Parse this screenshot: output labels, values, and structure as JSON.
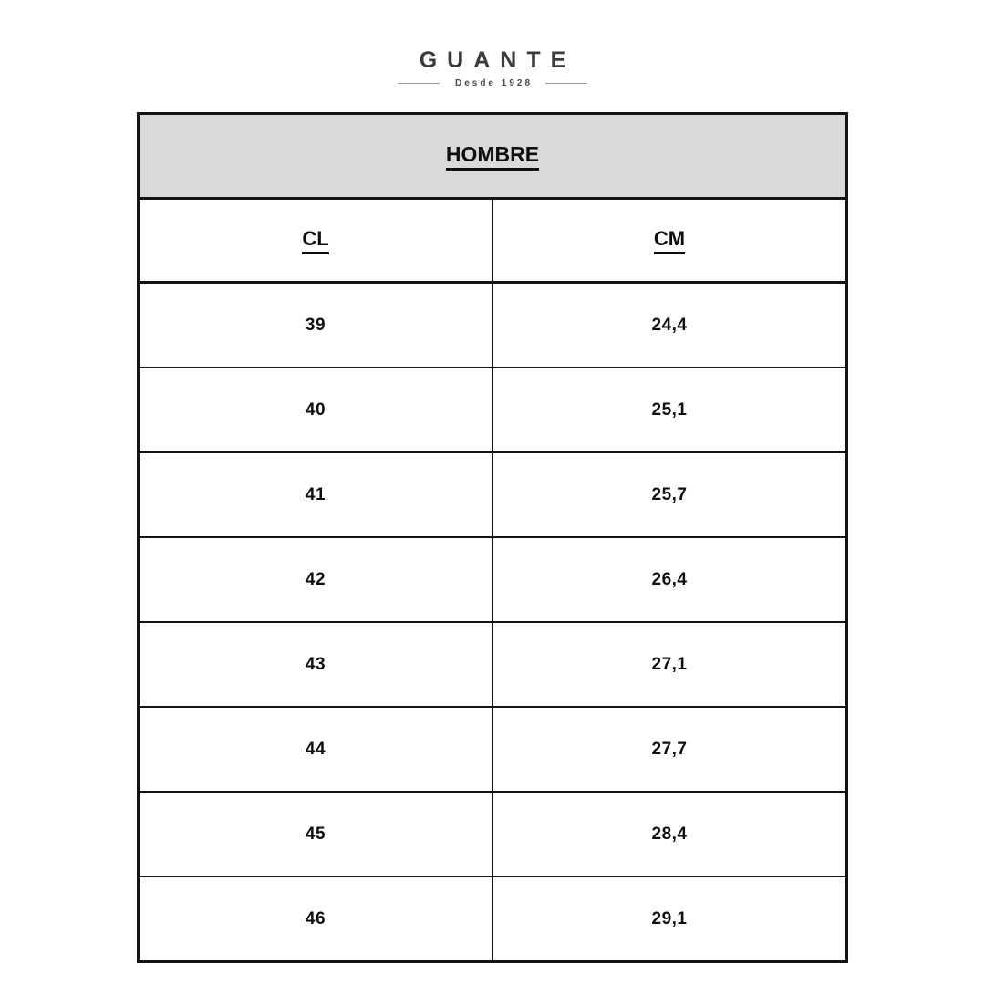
{
  "logo": {
    "brand": "GUANTE",
    "tagline": "Desde 1928"
  },
  "chart_data": {
    "type": "table",
    "title": "HOMBRE",
    "columns": [
      "CL",
      "CM"
    ],
    "rows": [
      [
        "39",
        "24,4"
      ],
      [
        "40",
        "25,1"
      ],
      [
        "41",
        "25,7"
      ],
      [
        "42",
        "26,4"
      ],
      [
        "43",
        "27,1"
      ],
      [
        "44",
        "27,7"
      ],
      [
        "45",
        "28,4"
      ],
      [
        "46",
        "29,1"
      ]
    ]
  },
  "colors": {
    "page_bg": "#ffffff",
    "header_band_bg": "#d9d9d9",
    "table_border": "#141414",
    "table_text": "#0e0e0e",
    "logo_text": "#3b3b3b",
    "tagline_text": "#4a4a4a",
    "tagline_rule": "#9b9b9b"
  }
}
